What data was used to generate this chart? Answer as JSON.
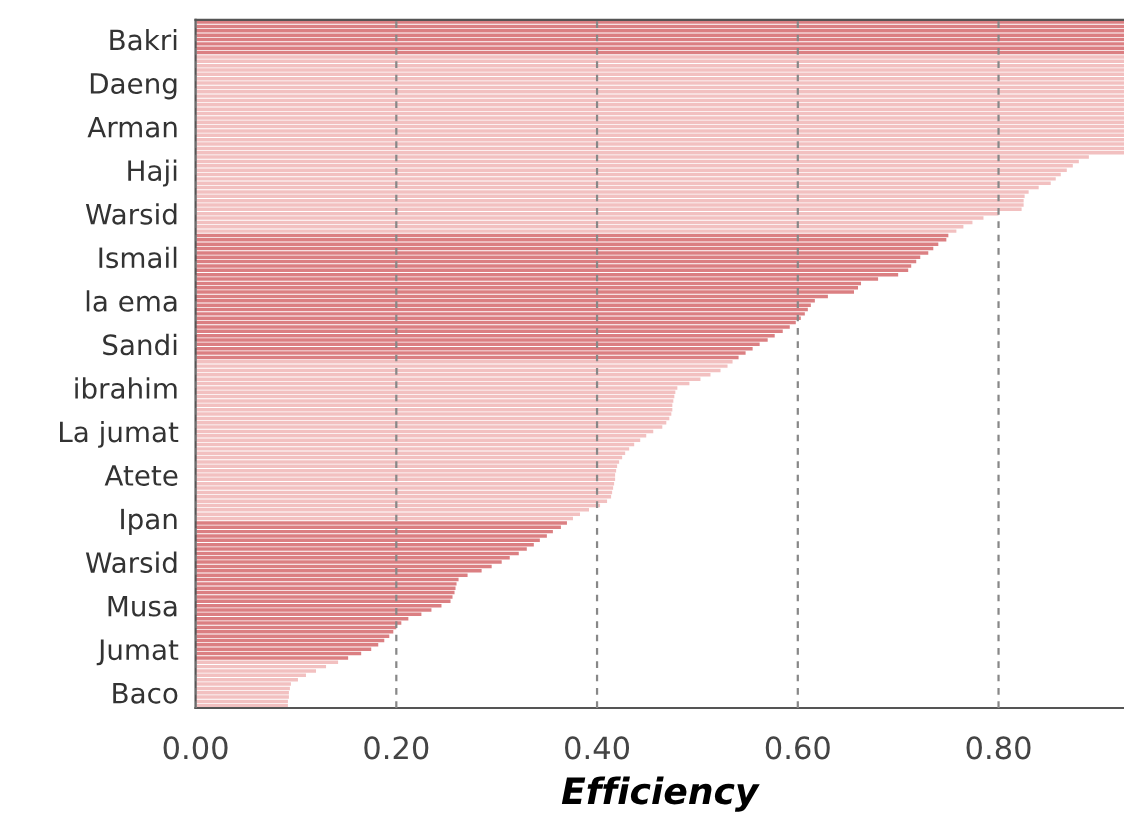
{
  "chart_data": {
    "type": "bar",
    "orientation": "horizontal",
    "xlabel": "Efficiency",
    "categories": [
      null,
      null,
      null,
      null,
      "Bakri",
      null,
      null,
      null,
      null,
      null,
      null,
      null,
      null,
      null,
      "Daeng",
      null,
      null,
      null,
      null,
      null,
      null,
      null,
      null,
      null,
      "Arman",
      null,
      null,
      null,
      null,
      null,
      null,
      null,
      null,
      null,
      "Haji",
      null,
      null,
      null,
      null,
      null,
      null,
      null,
      null,
      null,
      "Warsid",
      null,
      null,
      null,
      null,
      null,
      null,
      null,
      null,
      null,
      "Ismail",
      null,
      null,
      null,
      null,
      null,
      null,
      null,
      null,
      null,
      "la ema",
      null,
      null,
      null,
      null,
      null,
      null,
      null,
      null,
      null,
      "Sandi",
      null,
      null,
      null,
      null,
      null,
      null,
      null,
      null,
      null,
      "ibrahim",
      null,
      null,
      null,
      null,
      null,
      null,
      null,
      null,
      null,
      "La jumat",
      null,
      null,
      null,
      null,
      null,
      null,
      null,
      null,
      null,
      "Atete",
      null,
      null,
      null,
      null,
      null,
      null,
      null,
      null,
      null,
      "Ipan",
      null,
      null,
      null,
      null,
      null,
      null,
      null,
      null,
      null,
      "Warsid",
      null,
      null,
      null,
      null,
      null,
      null,
      null,
      null,
      null,
      "Musa",
      null,
      null,
      null,
      null,
      null,
      null,
      null,
      null,
      null,
      "Jumat",
      null,
      null,
      null,
      null,
      null,
      null,
      null,
      null,
      null,
      "Baco",
      null,
      null,
      null
    ],
    "values": [
      0.925,
      0.925,
      0.925,
      0.925,
      0.925,
      0.925,
      0.925,
      0.925,
      0.925,
      0.925,
      0.925,
      0.925,
      0.925,
      0.925,
      0.925,
      0.925,
      0.925,
      0.925,
      0.925,
      0.925,
      0.925,
      0.925,
      0.925,
      0.925,
      0.925,
      0.925,
      0.925,
      0.925,
      0.925,
      0.925,
      0.925,
      0.89,
      0.88,
      0.874,
      0.868,
      0.862,
      0.857,
      0.852,
      0.84,
      0.83,
      0.826,
      0.825,
      0.825,
      0.823,
      0.8,
      0.785,
      0.774,
      0.765,
      0.758,
      0.75,
      0.748,
      0.74,
      0.735,
      0.73,
      0.722,
      0.718,
      0.713,
      0.71,
      0.7,
      0.68,
      0.663,
      0.66,
      0.656,
      0.63,
      0.617,
      0.613,
      0.61,
      0.607,
      0.603,
      0.598,
      0.592,
      0.585,
      0.577,
      0.57,
      0.562,
      0.555,
      0.548,
      0.541,
      0.535,
      0.53,
      0.523,
      0.513,
      0.503,
      0.492,
      0.48,
      0.478,
      0.477,
      0.476,
      0.475,
      0.475,
      0.474,
      0.472,
      0.469,
      0.465,
      0.456,
      0.449,
      0.443,
      0.437,
      0.432,
      0.428,
      0.425,
      0.422,
      0.42,
      0.419,
      0.418,
      0.418,
      0.417,
      0.416,
      0.415,
      0.414,
      0.41,
      0.403,
      0.392,
      0.383,
      0.376,
      0.37,
      0.364,
      0.356,
      0.35,
      0.343,
      0.337,
      0.33,
      0.322,
      0.313,
      0.305,
      0.295,
      0.285,
      0.271,
      0.262,
      0.26,
      0.259,
      0.258,
      0.256,
      0.254,
      0.245,
      0.235,
      0.225,
      0.212,
      0.205,
      0.2,
      0.197,
      0.193,
      0.188,
      0.182,
      0.175,
      0.165,
      0.152,
      0.142,
      0.13,
      0.12,
      0.11,
      0.102,
      0.095,
      0.094,
      0.093,
      0.093,
      0.092,
      0.092
    ],
    "colors": [
      "#db7f82",
      "#db7f82",
      "#db7f82",
      "#db7f82",
      "#db7f82",
      "#db7f82",
      "#db7f82",
      "#db7f82",
      "#f2c0c0",
      "#f2c0c0",
      "#f2c0c0",
      "#f2c0c0",
      "#f2c0c0",
      "#f2c0c0",
      "#f2c0c0",
      "#f2c0c0",
      "#f2c0c0",
      "#f2c0c0",
      "#f2c0c0",
      "#f2c0c0",
      "#f2c0c0",
      "#f2c0c0",
      "#f2c0c0",
      "#f2c0c0",
      "#f2c0c0",
      "#f2c0c0",
      "#f2c0c0",
      "#f2c0c0",
      "#f2c0c0",
      "#f2c0c0",
      "#f2c0c0",
      "#f2c0c0",
      "#f2c0c0",
      "#f2c0c0",
      "#f2c0c0",
      "#f2c0c0",
      "#f2c0c0",
      "#f2c0c0",
      "#f2c0c0",
      "#f2c0c0",
      "#f2c0c0",
      "#f2c0c0",
      "#f2c0c0",
      "#f2c0c0",
      "#f2c0c0",
      "#f2c0c0",
      "#f2c0c0",
      "#f2c0c0",
      "#f2c0c0",
      "#db7f82",
      "#db7f82",
      "#db7f82",
      "#db7f82",
      "#db7f82",
      "#db7f82",
      "#db7f82",
      "#db7f82",
      "#db7f82",
      "#db7f82",
      "#db7f82",
      "#db7f82",
      "#db7f82",
      "#db7f82",
      "#db7f82",
      "#db7f82",
      "#db7f82",
      "#db7f82",
      "#db7f82",
      "#db7f82",
      "#db7f82",
      "#db7f82",
      "#db7f82",
      "#db7f82",
      "#db7f82",
      "#db7f82",
      "#db7f82",
      "#db7f82",
      "#db7f82",
      "#f2c0c0",
      "#f2c0c0",
      "#f2c0c0",
      "#f2c0c0",
      "#f2c0c0",
      "#f2c0c0",
      "#f2c0c0",
      "#f2c0c0",
      "#f2c0c0",
      "#f2c0c0",
      "#f2c0c0",
      "#f2c0c0",
      "#f2c0c0",
      "#f2c0c0",
      "#f2c0c0",
      "#f2c0c0",
      "#f2c0c0",
      "#f2c0c0",
      "#f2c0c0",
      "#f2c0c0",
      "#f2c0c0",
      "#f2c0c0",
      "#f2c0c0",
      "#f2c0c0",
      "#f2c0c0",
      "#f2c0c0",
      "#f2c0c0",
      "#f2c0c0",
      "#f2c0c0",
      "#f2c0c0",
      "#f2c0c0",
      "#f2c0c0",
      "#f2c0c0",
      "#f2c0c0",
      "#f2c0c0",
      "#f2c0c0",
      "#f2c0c0",
      "#db7f82",
      "#db7f82",
      "#db7f82",
      "#db7f82",
      "#db7f82",
      "#db7f82",
      "#db7f82",
      "#db7f82",
      "#db7f82",
      "#db7f82",
      "#db7f82",
      "#db7f82",
      "#db7f82",
      "#db7f82",
      "#db7f82",
      "#db7f82",
      "#db7f82",
      "#db7f82",
      "#db7f82",
      "#db7f82",
      "#db7f82",
      "#db7f82",
      "#db7f82",
      "#db7f82",
      "#db7f82",
      "#db7f82",
      "#db7f82",
      "#db7f82",
      "#db7f82",
      "#db7f82",
      "#db7f82",
      "#db7f82",
      "#f2c0c0",
      "#f2c0c0",
      "#f2c0c0",
      "#f2c0c0",
      "#f2c0c0",
      "#f2c0c0",
      "#f2c0c0",
      "#f2c0c0",
      "#f2c0c0",
      "#f2c0c0",
      "#f2c0c0"
    ],
    "xlim": [
      0,
      0.925
    ],
    "xticks": [
      {
        "value": 0,
        "label": "0.00"
      },
      {
        "value": 0.2,
        "label": "0.20"
      },
      {
        "value": 0.4,
        "label": "0.40"
      },
      {
        "value": 0.6,
        "label": "0.60"
      },
      {
        "value": 0.8,
        "label": "0.80"
      }
    ],
    "grid": "x"
  }
}
